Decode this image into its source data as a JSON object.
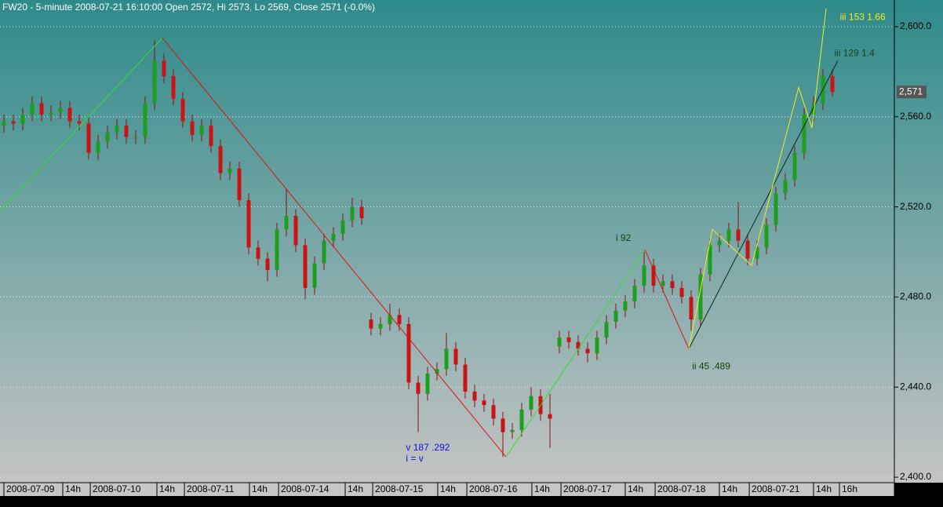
{
  "chart_data": {
    "type": "candlestick",
    "title": "FW20 - 5-minute 2008-07-21 16:10:00 Open 2572, Hi 2573, Lo 2569, Close 2571 (-0.0%)",
    "up_color": "#1e9e1e",
    "down_color": "#c81414",
    "open": [
      2556,
      2558,
      2557,
      2561,
      2566,
      2561,
      2562,
      2564,
      2558,
      2557,
      2544,
      2549,
      2553,
      2556,
      2551,
      2551,
      2566,
      2585,
      2578,
      2568,
      2558,
      2552,
      2556,
      2547,
      2535,
      2537,
      2523,
      2502,
      2497,
      2492,
      2510,
      2516,
      2503,
      2484,
      2495,
      2505,
      2508,
      2514,
      2520,
      2470,
      2466,
      2468,
      2472,
      2468,
      2442,
      2437,
      2446,
      2448,
      2457,
      2450,
      2438,
      2434,
      2432,
      2426,
      2420,
      2421,
      2430,
      2436,
      2428,
      2458,
      2462,
      2460,
      2457,
      2455,
      2462,
      2469,
      2474,
      2478,
      2485,
      2494,
      2485,
      2487,
      2484,
      2480,
      2470,
      2490,
      2503,
      2505,
      2510,
      2505,
      2497,
      2502,
      2512,
      2526,
      2532,
      2544,
      2561,
      2566,
      2578
    ],
    "high": [
      2561,
      2561,
      2564,
      2569,
      2569,
      2565,
      2567,
      2567,
      2561,
      2560,
      2552,
      2556,
      2559,
      2559,
      2554,
      2569,
      2594,
      2588,
      2581,
      2571,
      2561,
      2559,
      2559,
      2550,
      2540,
      2540,
      2526,
      2505,
      2500,
      2513,
      2528,
      2519,
      2506,
      2498,
      2508,
      2511,
      2517,
      2524,
      2523,
      2473,
      2471,
      2477,
      2475,
      2471,
      2445,
      2449,
      2451,
      2464,
      2460,
      2453,
      2441,
      2437,
      2435,
      2429,
      2424,
      2433,
      2440,
      2439,
      2437,
      2465,
      2465,
      2463,
      2460,
      2465,
      2472,
      2477,
      2481,
      2488,
      2500,
      2497,
      2490,
      2490,
      2487,
      2483,
      2493,
      2506,
      2508,
      2513,
      2522,
      2508,
      2505,
      2515,
      2529,
      2535,
      2547,
      2564,
      2569,
      2581,
      2581
    ],
    "low": [
      2553,
      2554,
      2554,
      2558,
      2558,
      2558,
      2559,
      2555,
      2554,
      2541,
      2541,
      2546,
      2550,
      2548,
      2548,
      2548,
      2563,
      2575,
      2565,
      2555,
      2549,
      2549,
      2544,
      2532,
      2532,
      2520,
      2499,
      2494,
      2487,
      2489,
      2507,
      2500,
      2479,
      2481,
      2492,
      2502,
      2505,
      2511,
      2512,
      2463,
      2463,
      2465,
      2465,
      2439,
      2420,
      2434,
      2443,
      2445,
      2447,
      2435,
      2431,
      2429,
      2423,
      2409,
      2417,
      2418,
      2427,
      2425,
      2413,
      2455,
      2457,
      2454,
      2451,
      2452,
      2459,
      2466,
      2471,
      2475,
      2482,
      2482,
      2482,
      2481,
      2477,
      2465,
      2467,
      2487,
      2500,
      2502,
      2502,
      2494,
      2494,
      2499,
      2509,
      2523,
      2529,
      2541,
      2558,
      2563,
      2569
    ],
    "close": [
      2558,
      2557,
      2561,
      2566,
      2561,
      2562,
      2564,
      2558,
      2557,
      2544,
      2549,
      2553,
      2556,
      2551,
      2551,
      2566,
      2585,
      2578,
      2568,
      2558,
      2552,
      2556,
      2547,
      2535,
      2537,
      2523,
      2502,
      2497,
      2492,
      2510,
      2516,
      2503,
      2484,
      2495,
      2505,
      2508,
      2514,
      2520,
      2515,
      2466,
      2468,
      2472,
      2468,
      2442,
      2437,
      2446,
      2448,
      2457,
      2450,
      2438,
      2434,
      2432,
      2426,
      2420,
      2421,
      2430,
      2436,
      2428,
      2426,
      2462,
      2460,
      2457,
      2455,
      2462,
      2469,
      2474,
      2478,
      2485,
      2494,
      2485,
      2487,
      2484,
      2480,
      2470,
      2490,
      2503,
      2505,
      2510,
      2505,
      2497,
      2502,
      2512,
      2526,
      2532,
      2544,
      2561,
      2566,
      2578,
      2571
    ],
    "xlim": [
      -0.4167,
      94.5833
    ],
    "xticks": [
      {
        "value": 0,
        "label": "2008-07-09"
      },
      {
        "value": 6.25,
        "label": "14h"
      },
      {
        "value": 9.17,
        "label": "2008-07-10"
      },
      {
        "value": 16.25,
        "label": "14h"
      },
      {
        "value": 19.17,
        "label": "2008-07-11"
      },
      {
        "value": 26.08,
        "label": "14h"
      },
      {
        "value": 29.17,
        "label": "2008-07-14"
      },
      {
        "value": 36.25,
        "label": "14h"
      },
      {
        "value": 39.17,
        "label": "2008-07-15"
      },
      {
        "value": 46.08,
        "label": "14h"
      },
      {
        "value": 49.17,
        "label": "2008-07-16"
      },
      {
        "value": 56.08,
        "label": "14h"
      },
      {
        "value": 59.17,
        "label": "2008-07-17"
      },
      {
        "value": 66,
        "label": "14h"
      },
      {
        "value": 69.17,
        "label": "2008-07-18"
      },
      {
        "value": 76,
        "label": "14h"
      },
      {
        "value": 79.17,
        "label": "2008-07-21"
      },
      {
        "value": 86,
        "label": "14h"
      },
      {
        "value": 88.75,
        "label": "16h"
      }
    ],
    "ylim": [
      2397.57,
      2611.85
    ],
    "yticks": [
      {
        "value": 2400,
        "label": "2,400.0"
      },
      {
        "value": 2440,
        "label": "2,440.0"
      },
      {
        "value": 2480,
        "label": "2,480.0"
      },
      {
        "value": 2520,
        "label": "2,520.0"
      },
      {
        "value": 2560,
        "label": "2,560.0"
      },
      {
        "value": 2600,
        "label": "2,600.0"
      }
    ],
    "grid": true,
    "last_price": {
      "value": 2571,
      "label": "2,571"
    },
    "wave_lines": [
      {
        "color": "#33dd33",
        "x": [
          -0.42,
          16.83
        ],
        "values": [
          2518,
          2595
        ]
      },
      {
        "color": "#dd1111",
        "x": [
          16.83,
          53.33
        ],
        "values": [
          2595,
          2409
        ]
      },
      {
        "color": "#33dd33",
        "x": [
          53.33,
          68.08
        ],
        "values": [
          2409,
          2501
        ]
      },
      {
        "color": "#dd1111",
        "x": [
          68.08,
          72.75
        ],
        "values": [
          2501,
          2457
        ]
      },
      {
        "color": "#0a2a0a",
        "x": [
          72.75,
          88.58
        ],
        "values": [
          2457,
          2585
        ]
      },
      {
        "color": "#f0f020",
        "x": [
          72.75,
          75.25,
          79.42,
          84.42,
          85.83,
          87.33
        ],
        "values": [
          2457,
          2510,
          2494,
          2573,
          2555,
          2608
        ]
      }
    ],
    "annotations": [
      {
        "text": "i 92",
        "color": "#114411",
        "x": 65.0,
        "y": 2506
      },
      {
        "text": "ii 45 .489",
        "color": "#114411",
        "x": 73.1,
        "y": 2449
      },
      {
        "text": "v 187 .292",
        "color": "#1010e0",
        "x": 42.7,
        "y": 2413
      },
      {
        "text": "i = v",
        "color": "#1010e0",
        "x": 42.7,
        "y": 2408
      },
      {
        "text": "iii 129 1.4",
        "color": "#114411",
        "x": 88.2,
        "y": 2588
      },
      {
        "text": "iii 153 1.66",
        "color": "#f0f020",
        "x": 88.8,
        "y": 2604
      }
    ]
  }
}
